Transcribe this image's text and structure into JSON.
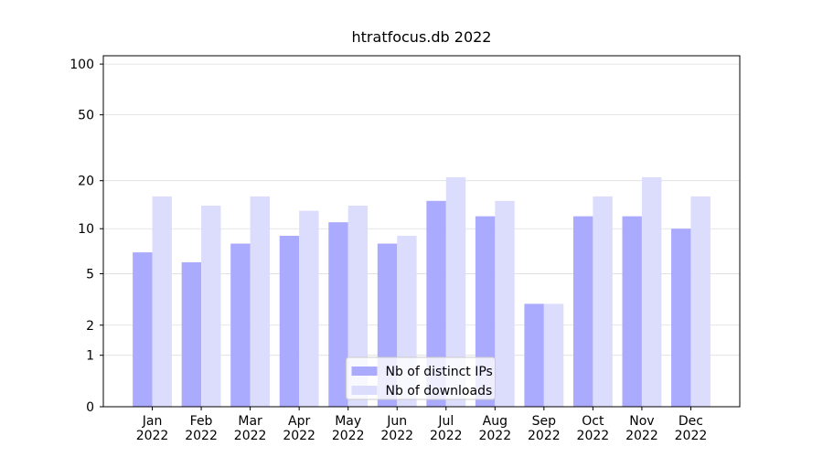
{
  "chart_data": {
    "type": "bar",
    "title": "htratfocus.db 2022",
    "categories": [
      "Jan\n2022",
      "Feb\n2022",
      "Mar\n2022",
      "Apr\n2022",
      "May\n2022",
      "Jun\n2022",
      "Jul\n2022",
      "Aug\n2022",
      "Sep\n2022",
      "Oct\n2022",
      "Nov\n2022",
      "Dec\n2022"
    ],
    "series": [
      {
        "name": "Nb of distinct IPs",
        "color": "#aaaaff",
        "values": [
          7,
          6,
          8,
          9,
          11,
          8,
          15,
          12,
          3,
          12,
          12,
          10
        ]
      },
      {
        "name": "Nb of downloads",
        "color": "#dcdcfd",
        "values": [
          16,
          14,
          16,
          13,
          14,
          9,
          21,
          15,
          3,
          16,
          21,
          16
        ]
      }
    ],
    "scale": "log1p",
    "ylim": [
      0,
      112
    ],
    "yticks": [
      0,
      1,
      2,
      5,
      10,
      20,
      50,
      100
    ],
    "grid": true,
    "legend": "lower center"
  }
}
